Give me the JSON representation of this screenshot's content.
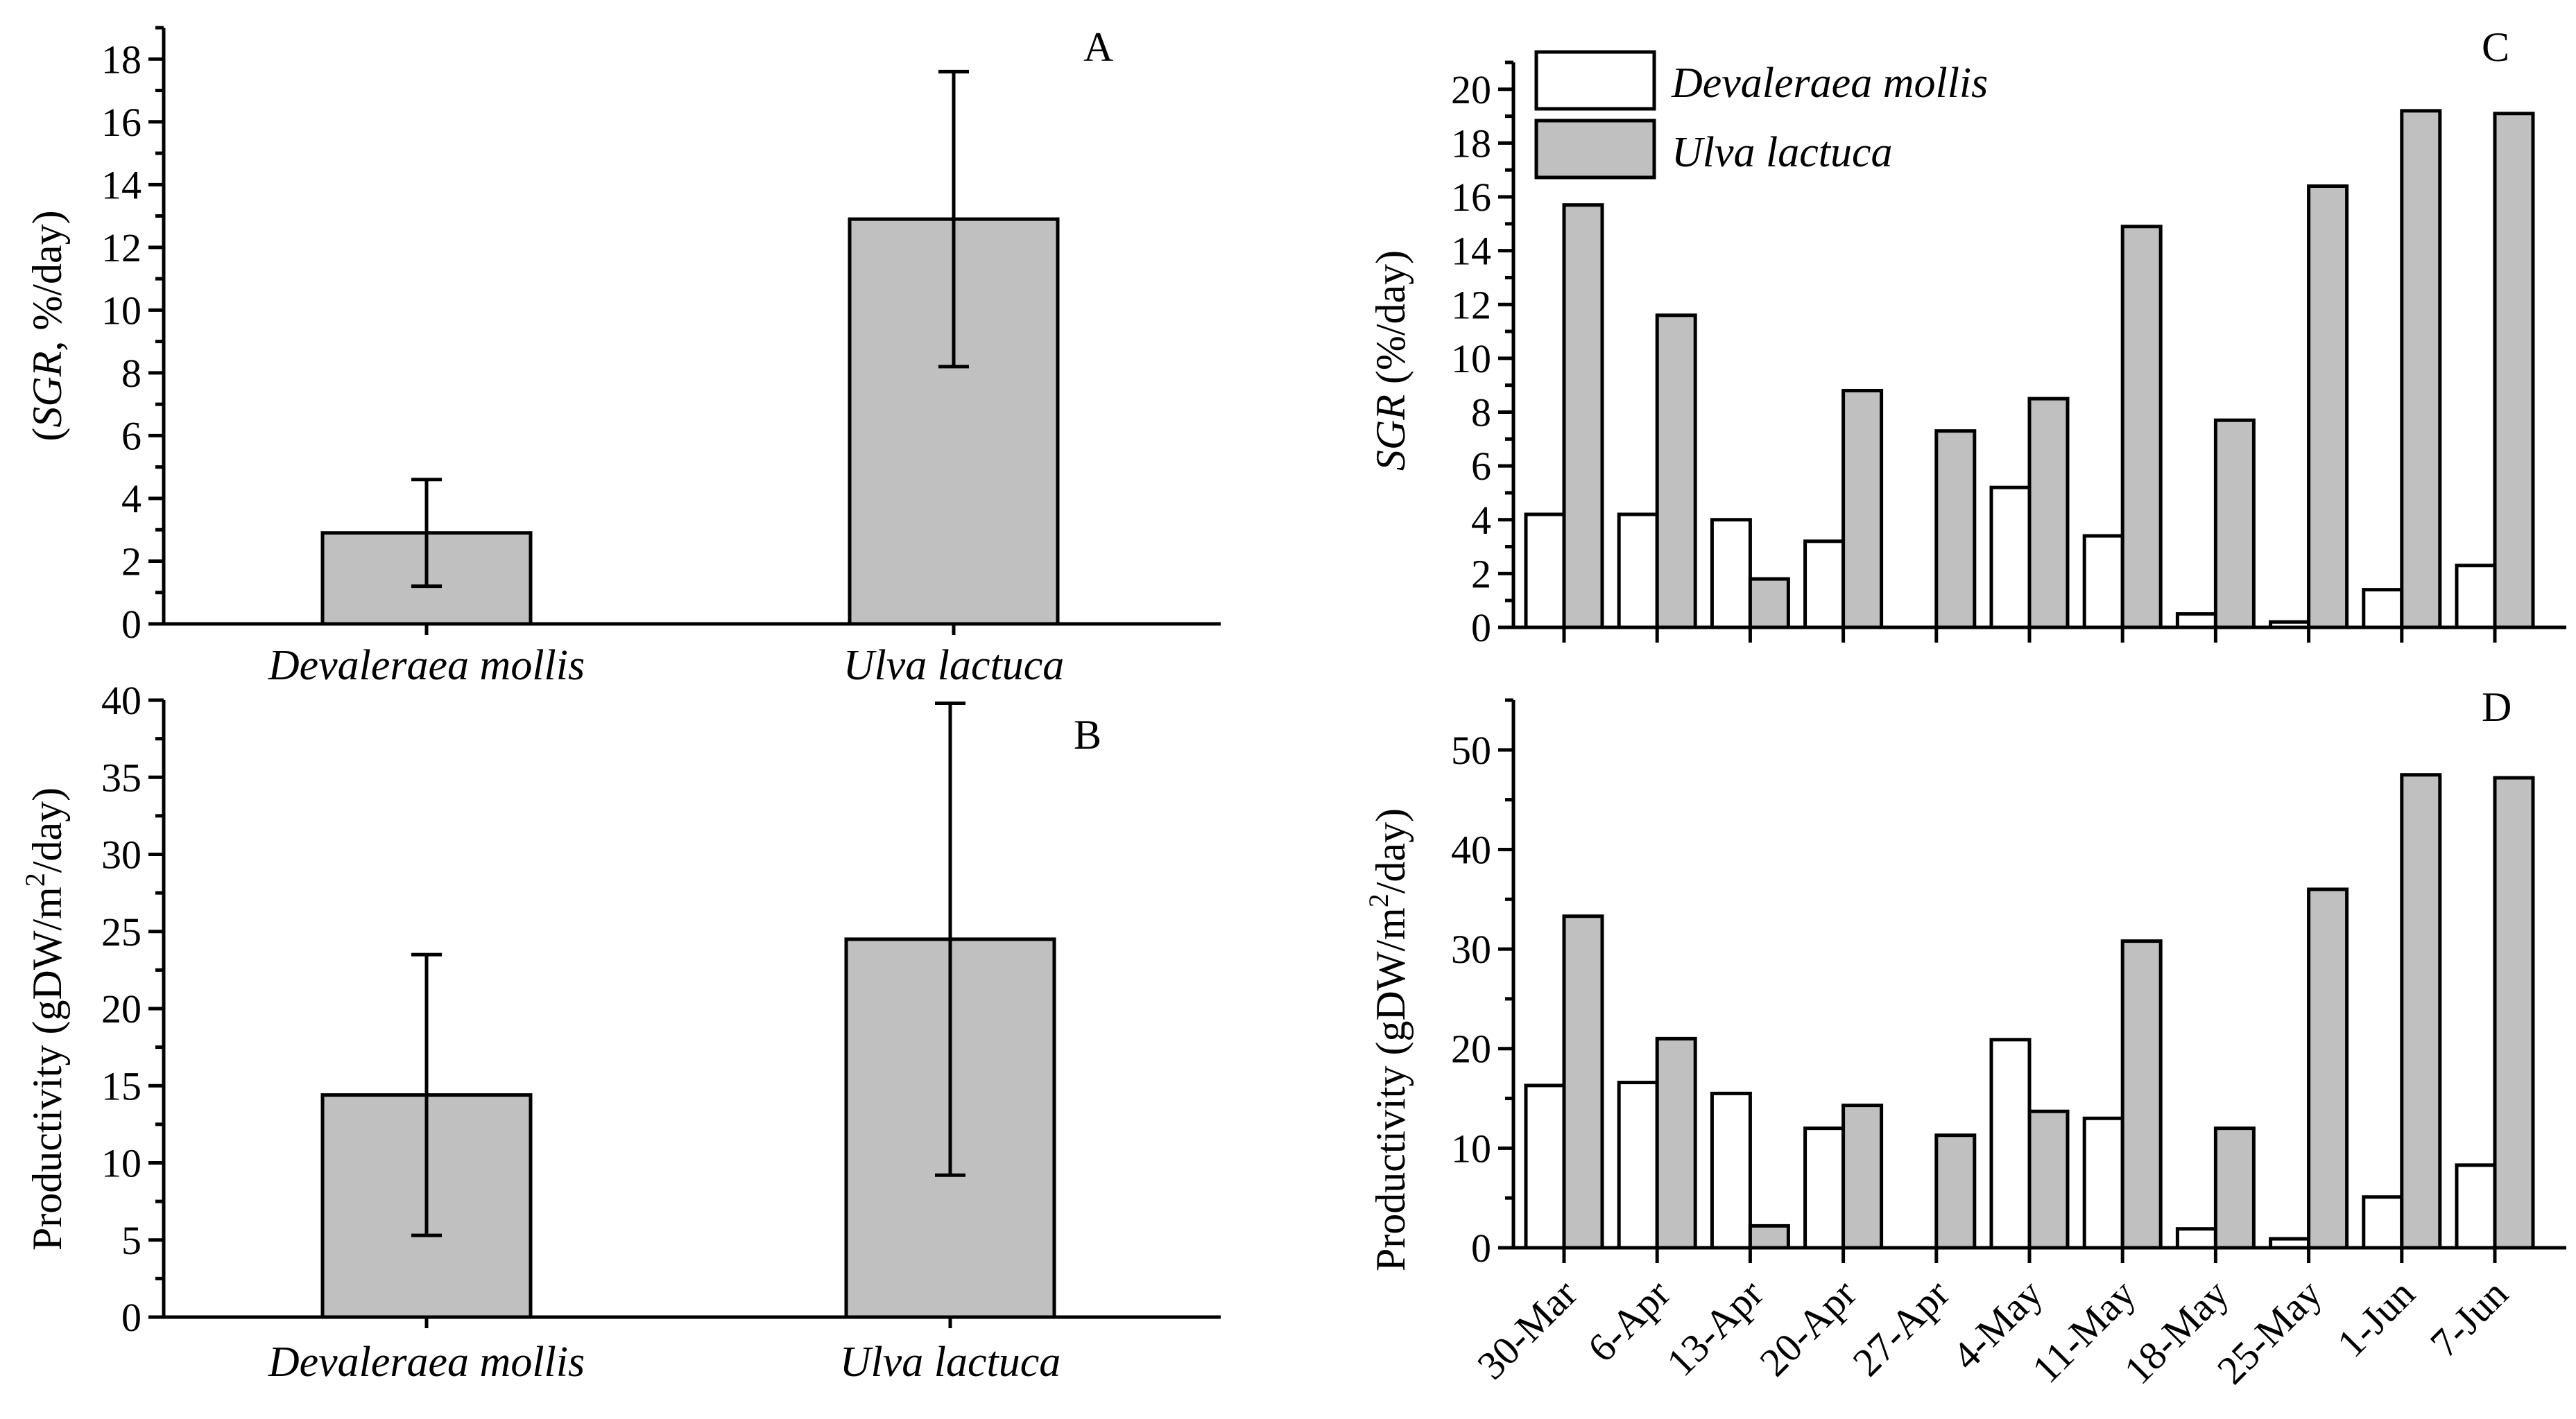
{
  "colors": {
    "gray_bar": "#c0c0c0",
    "white_bar": "#ffffff",
    "axis": "#000000"
  },
  "panels": {
    "A": {
      "letter": "A",
      "ylabel_species": "SGR",
      "ylabel_rest": ", %/day)",
      "ylabel_open": "("
    },
    "B": {
      "letter": "B",
      "ylabel_main": "Productivity (gDW/m",
      "ylabel_sup": "2",
      "ylabel_end": "/day)"
    },
    "C": {
      "letter": "C",
      "ylabel_species": "SGR",
      "ylabel_rest": " (%/day)"
    },
    "D": {
      "letter": "D",
      "ylabel_main": "Productivity (gDW/m",
      "ylabel_sup": "2",
      "ylabel_end": "/day)"
    }
  },
  "legend": {
    "series1": "Devaleraea mollis",
    "series2": "Ulva lactuca"
  },
  "chart_data": [
    {
      "id": "A",
      "type": "bar",
      "categories": [
        "Devaleraea mollis",
        "Ulva lactuca"
      ],
      "values": [
        2.9,
        12.9
      ],
      "errors": [
        1.7,
        4.7
      ],
      "ylim": [
        0,
        19
      ],
      "yticks": [
        0,
        2,
        4,
        6,
        8,
        10,
        12,
        14,
        16,
        18
      ],
      "ylabel": "(SGR, %/day)"
    },
    {
      "id": "B",
      "type": "bar",
      "categories": [
        "Devaleraea mollis",
        "Ulva lactuca"
      ],
      "values": [
        14.4,
        24.5
      ],
      "errors": [
        9.1,
        15.3
      ],
      "ylim": [
        0,
        40
      ],
      "yticks": [
        0,
        5,
        10,
        15,
        20,
        25,
        30,
        35,
        40
      ],
      "ylabel": "Productivity (gDW/m2/day)"
    },
    {
      "id": "C",
      "type": "bar",
      "categories": [
        "30-Mar",
        "6-Apr",
        "13-Apr",
        "20-Apr",
        "27-Apr",
        "4-May",
        "11-May",
        "18-May",
        "25-May",
        "1-Jun",
        "7-Jun"
      ],
      "series": [
        {
          "name": "Devaleraea mollis",
          "values": [
            4.2,
            4.2,
            4.0,
            3.2,
            0,
            5.2,
            3.4,
            0.5,
            0.2,
            1.4,
            2.3
          ]
        },
        {
          "name": "Ulva lactuca",
          "values": [
            15.7,
            11.6,
            1.8,
            8.8,
            7.3,
            8.5,
            14.9,
            7.7,
            16.4,
            19.2,
            19.1
          ]
        }
      ],
      "ylim": [
        0,
        21
      ],
      "yticks": [
        0,
        2,
        4,
        6,
        8,
        10,
        12,
        14,
        16,
        18,
        20
      ],
      "ylabel": "SGR (%/day)"
    },
    {
      "id": "D",
      "type": "bar",
      "categories": [
        "30-Mar",
        "6-Apr",
        "13-Apr",
        "20-Apr",
        "27-Apr",
        "4-May",
        "11-May",
        "18-May",
        "25-May",
        "1-Jun",
        "7-Jun"
      ],
      "series": [
        {
          "name": "Devaleraea mollis",
          "values": [
            16.3,
            16.6,
            15.5,
            12.0,
            0,
            20.9,
            13.0,
            1.9,
            0.9,
            5.1,
            8.3
          ]
        },
        {
          "name": "Ulva lactuca",
          "values": [
            33.3,
            21.0,
            2.2,
            14.3,
            11.3,
            13.7,
            30.8,
            12.0,
            36.0,
            47.5,
            47.2
          ]
        }
      ],
      "ylim": [
        0,
        55
      ],
      "yticks": [
        0,
        10,
        20,
        30,
        40,
        50
      ],
      "ylabel": "Productivity (gDW/m2/day)"
    }
  ]
}
